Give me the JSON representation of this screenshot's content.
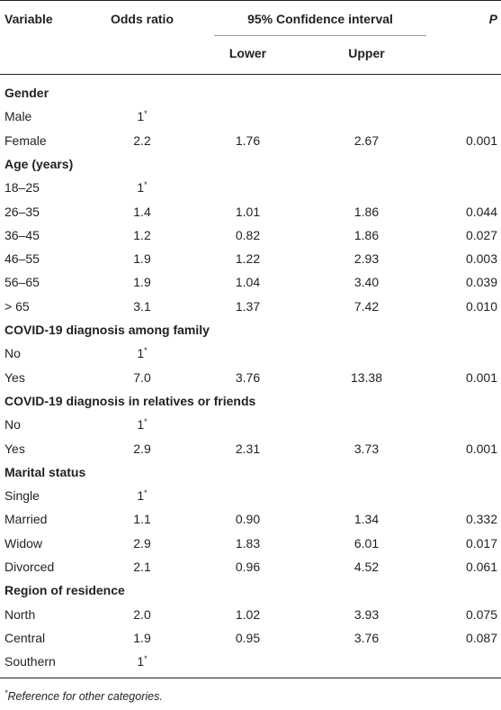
{
  "header": {
    "variable": "Variable",
    "odds_ratio": "Odds ratio",
    "ci": "95% Confidence interval",
    "lower": "Lower",
    "upper": "Upper",
    "p": "P"
  },
  "ref_mark": "*",
  "rows": [
    {
      "type": "section",
      "label": "Gender"
    },
    {
      "type": "data",
      "label": "Male",
      "or": "1",
      "ref": true,
      "lower": "",
      "upper": "",
      "p": ""
    },
    {
      "type": "data",
      "label": "Female",
      "or": "2.2",
      "lower": "1.76",
      "upper": "2.67",
      "p": "0.001"
    },
    {
      "type": "section",
      "label": "Age (years)"
    },
    {
      "type": "data",
      "label": "18–25",
      "or": "1",
      "ref": true,
      "lower": "",
      "upper": "",
      "p": ""
    },
    {
      "type": "data",
      "label": "26–35",
      "or": "1.4",
      "lower": "1.01",
      "upper": "1.86",
      "p": "0.044"
    },
    {
      "type": "data",
      "label": "36–45",
      "or": "1.2",
      "lower": "0.82",
      "upper": "1.86",
      "p": "0.027"
    },
    {
      "type": "data",
      "label": "46–55",
      "or": "1.9",
      "lower": "1.22",
      "upper": "2.93",
      "p": "0.003"
    },
    {
      "type": "data",
      "label": "56–65",
      "or": "1.9",
      "lower": "1.04",
      "upper": "3.40",
      "p": "0.039"
    },
    {
      "type": "data",
      "label": "> 65",
      "or": "3.1",
      "lower": "1.37",
      "upper": "7.42",
      "p": "0.010"
    },
    {
      "type": "section",
      "label": "COVID-19 diagnosis among family"
    },
    {
      "type": "data",
      "label": "No",
      "or": "1",
      "ref": true,
      "lower": "",
      "upper": "",
      "p": ""
    },
    {
      "type": "data",
      "label": "Yes",
      "or": "7.0",
      "lower": "3.76",
      "upper": "13.38",
      "p": "0.001"
    },
    {
      "type": "section",
      "label": "COVID-19 diagnosis in relatives or friends"
    },
    {
      "type": "data",
      "label": "No",
      "or": "1",
      "ref": true,
      "lower": "",
      "upper": "",
      "p": ""
    },
    {
      "type": "data",
      "label": "Yes",
      "or": "2.9",
      "lower": "2.31",
      "upper": "3.73",
      "p": "0.001"
    },
    {
      "type": "section",
      "label": "Marital status"
    },
    {
      "type": "data",
      "label": "Single",
      "or": "1",
      "ref": true,
      "lower": "",
      "upper": "",
      "p": ""
    },
    {
      "type": "data",
      "label": "Married",
      "or": "1.1",
      "lower": "0.90",
      "upper": "1.34",
      "p": "0.332"
    },
    {
      "type": "data",
      "label": "Widow",
      "or": "2.9",
      "lower": "1.83",
      "upper": "6.01",
      "p": "0.017"
    },
    {
      "type": "data",
      "label": "Divorced",
      "or": "2.1",
      "lower": "0.96",
      "upper": "4.52",
      "p": "0.061"
    },
    {
      "type": "section",
      "label": "Region of residence"
    },
    {
      "type": "data",
      "label": "North",
      "or": "2.0",
      "lower": "1.02",
      "upper": "3.93",
      "p": "0.075"
    },
    {
      "type": "data",
      "label": "Central",
      "or": "1.9",
      "lower": "0.95",
      "upper": "3.76",
      "p": "0.087"
    },
    {
      "type": "data",
      "label": "Southern",
      "or": "1",
      "ref": true,
      "lower": "",
      "upper": "",
      "p": ""
    }
  ],
  "footnote": {
    "mark": "*",
    "text": "Reference for other categories."
  }
}
